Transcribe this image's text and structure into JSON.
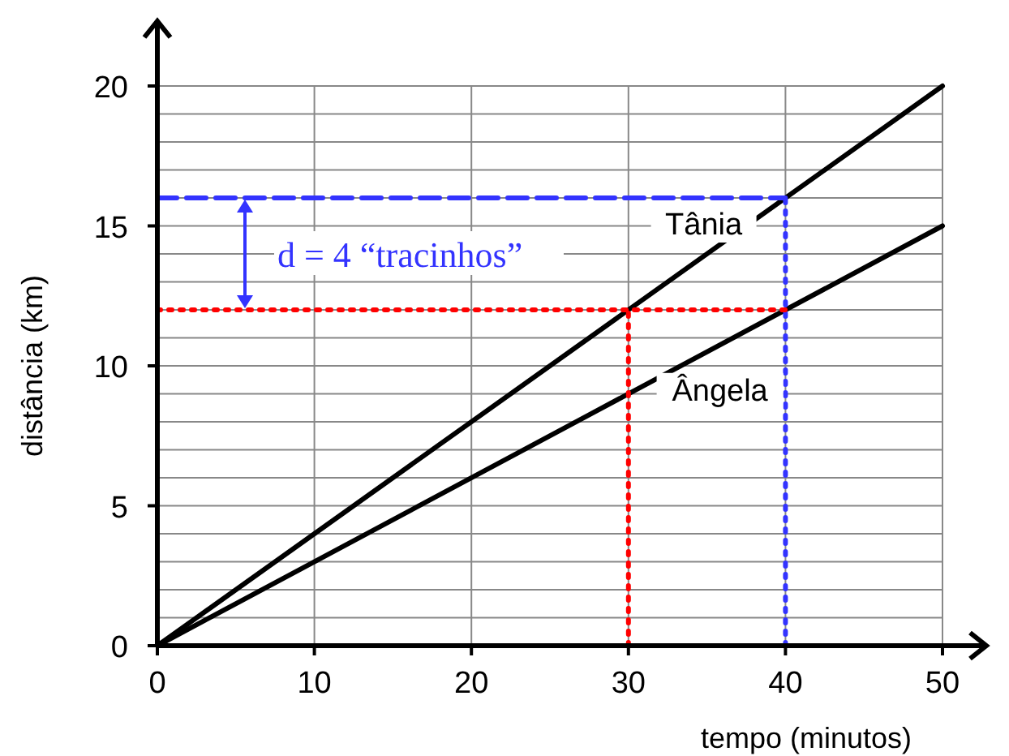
{
  "chart_data": {
    "type": "line",
    "xlabel": "tempo (minutos)",
    "ylabel": "distância (km)",
    "xlim": [
      0,
      50
    ],
    "ylim": [
      0,
      20
    ],
    "xticks": [
      0,
      10,
      20,
      30,
      40,
      50
    ],
    "yticks": [
      0,
      {
        "value": 1,
        "label": null
      },
      {
        "value": 2,
        "label": null
      },
      {
        "value": 3,
        "label": null
      },
      {
        "value": 4,
        "label": null
      },
      5,
      {
        "value": 6,
        "label": null
      },
      {
        "value": 7,
        "label": null
      },
      {
        "value": 8,
        "label": null
      },
      {
        "value": 9,
        "label": null
      },
      10,
      {
        "value": 11,
        "label": null
      },
      {
        "value": 12,
        "label": null
      },
      {
        "value": 13,
        "label": null
      },
      {
        "value": 14,
        "label": null
      },
      15,
      {
        "value": 16,
        "label": null
      },
      {
        "value": 17,
        "label": null
      },
      {
        "value": 18,
        "label": null
      },
      {
        "value": 19,
        "label": null
      },
      20
    ],
    "grid": true,
    "marker": "none",
    "line_style": "solid",
    "series": [
      {
        "name": "Tânia",
        "color": "#000000",
        "x": [
          0,
          50
        ],
        "values": [
          0,
          20
        ]
      },
      {
        "name": "Ângela",
        "color": "#000000",
        "x": [
          0,
          50
        ],
        "values": [
          0,
          15
        ]
      },
      {
        "color": "#3333ff",
        "x": [
          0,
          40
        ],
        "values": [
          16,
          16
        ],
        "line_style": "dashed"
      },
      {
        "color": "#3333ff",
        "x": [
          40,
          40
        ],
        "values": [
          0,
          16
        ],
        "line_style": "dotted"
      },
      {
        "color": "#ff0000",
        "x": [
          0,
          40
        ],
        "values": [
          12,
          12
        ],
        "line_style": "dotted"
      },
      {
        "color": "#ff0000",
        "x": [
          30,
          30
        ],
        "values": [
          0,
          12
        ],
        "line_style": "dotted"
      }
    ],
    "annotations": [
      "d = 4 “tracinhos”"
    ]
  }
}
